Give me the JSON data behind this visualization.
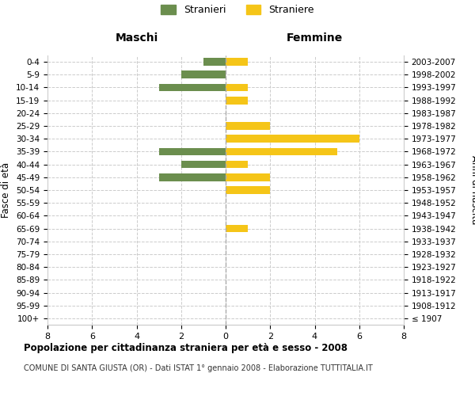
{
  "age_groups": [
    "100+",
    "95-99",
    "90-94",
    "85-89",
    "80-84",
    "75-79",
    "70-74",
    "65-69",
    "60-64",
    "55-59",
    "50-54",
    "45-49",
    "40-44",
    "35-39",
    "30-34",
    "25-29",
    "20-24",
    "15-19",
    "10-14",
    "5-9",
    "0-4"
  ],
  "birth_years": [
    "≤ 1907",
    "1908-1912",
    "1913-1917",
    "1918-1922",
    "1923-1927",
    "1928-1932",
    "1933-1937",
    "1938-1942",
    "1943-1947",
    "1948-1952",
    "1953-1957",
    "1958-1962",
    "1963-1967",
    "1968-1972",
    "1973-1977",
    "1978-1982",
    "1983-1987",
    "1988-1992",
    "1993-1997",
    "1998-2002",
    "2003-2007"
  ],
  "maschi": [
    0,
    0,
    0,
    0,
    0,
    0,
    0,
    0,
    0,
    0,
    0,
    3,
    2,
    3,
    0,
    0,
    0,
    0,
    3,
    2,
    1
  ],
  "femmine": [
    0,
    0,
    0,
    0,
    0,
    0,
    0,
    1,
    0,
    0,
    2,
    2,
    1,
    5,
    6,
    2,
    0,
    1,
    1,
    0,
    1
  ],
  "color_maschi": "#6b8e4e",
  "color_femmine": "#f5c518",
  "title": "Popolazione per cittadinanza straniera per età e sesso - 2008",
  "subtitle": "COMUNE DI SANTA GIUSTA (OR) - Dati ISTAT 1° gennaio 2008 - Elaborazione TUTTITALIA.IT",
  "ylabel_left": "Fasce di età",
  "ylabel_right": "Anni di nascita",
  "xlabel_maschi": "Maschi",
  "xlabel_femmine": "Femmine",
  "legend_maschi": "Stranieri",
  "legend_femmine": "Straniere",
  "xlim": 8,
  "background_color": "#ffffff",
  "grid_color": "#cccccc"
}
